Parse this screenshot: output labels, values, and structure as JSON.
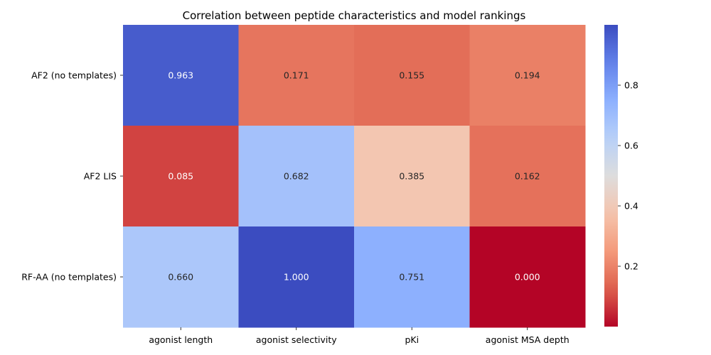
{
  "chart_data": {
    "type": "heatmap",
    "title": "Correlation between peptide characteristics and model rankings",
    "xlabel": "",
    "ylabel": "",
    "columns": [
      "agonist length",
      "agonist selectivity",
      "pKi",
      "agonist MSA depth"
    ],
    "rows": [
      "AF2 (no templates)",
      "AF2 LIS",
      "RF-AA (no templates)"
    ],
    "values": [
      [
        0.963,
        0.171,
        0.155,
        0.194
      ],
      [
        0.085,
        0.682,
        0.385,
        0.162
      ],
      [
        0.66,
        1.0,
        0.751,
        0.0
      ]
    ],
    "value_labels": [
      [
        "0.963",
        "0.171",
        "0.155",
        "0.194"
      ],
      [
        "0.085",
        "0.682",
        "0.385",
        "0.162"
      ],
      [
        "0.660",
        "1.000",
        "0.751",
        "0.000"
      ]
    ],
    "colormap": "coolwarm_r",
    "vmin": 0.0,
    "vmax": 1.0,
    "colorbar_ticks": [
      0.2,
      0.4,
      0.6,
      0.8
    ],
    "colorbar_tick_labels": [
      "0.2",
      "0.4",
      "0.6",
      "0.8"
    ],
    "colors": {
      "low": "#b40426",
      "mid": "#dddddd",
      "high": "#3b4cc0"
    }
  }
}
